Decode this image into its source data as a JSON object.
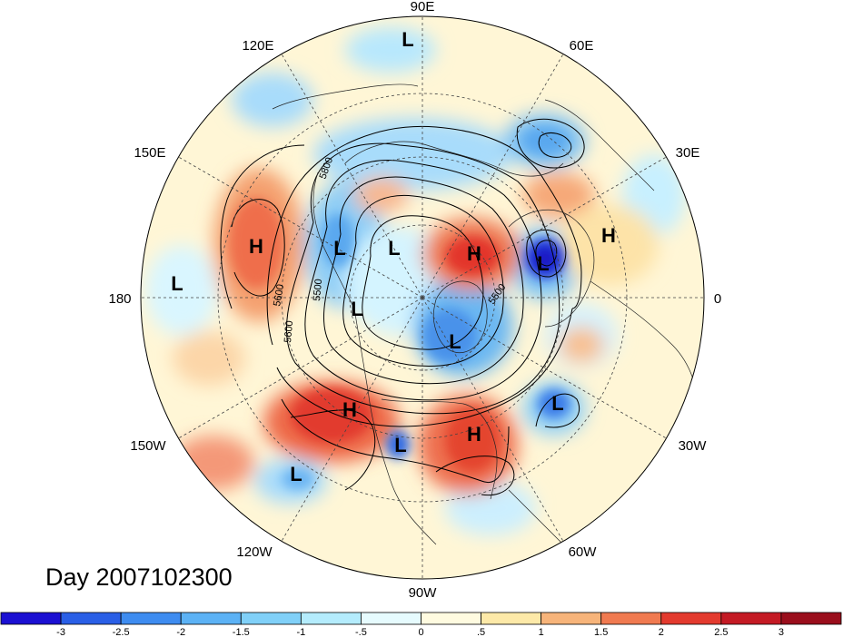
{
  "map": {
    "projection": "north-polar-stereographic",
    "longitude_labels": [
      {
        "text": "90E",
        "lon": 90
      },
      {
        "text": "60E",
        "lon": 60
      },
      {
        "text": "30E",
        "lon": 30
      },
      {
        "text": "0",
        "lon": 0
      },
      {
        "text": "30W",
        "lon": -30
      },
      {
        "text": "60W",
        "lon": -60
      },
      {
        "text": "90W",
        "lon": -90
      },
      {
        "text": "120W",
        "lon": -120
      },
      {
        "text": "150W",
        "lon": -150
      },
      {
        "text": "180",
        "lon": 180
      },
      {
        "text": "150E",
        "lon": 150
      },
      {
        "text": "120E",
        "lon": 120
      }
    ],
    "pressure_systems": [
      {
        "type": "L",
        "region": "central-siberia"
      },
      {
        "type": "H",
        "region": "kamchatka-pacific"
      },
      {
        "type": "L",
        "region": "north-pacific-west"
      },
      {
        "type": "L",
        "region": "east-siberia"
      },
      {
        "type": "L",
        "region": "arctic-siberia"
      },
      {
        "type": "H",
        "region": "scandinavia-barents"
      },
      {
        "type": "L",
        "region": "north-sea"
      },
      {
        "type": "H",
        "region": "eastern-europe"
      },
      {
        "type": "L",
        "region": "alaska-arctic"
      },
      {
        "type": "L",
        "region": "baffin-greenland"
      },
      {
        "type": "L",
        "region": "north-atlantic"
      },
      {
        "type": "H",
        "region": "western-north-america"
      },
      {
        "type": "L",
        "region": "central-north-america"
      },
      {
        "type": "H",
        "region": "eastern-north-america"
      },
      {
        "type": "L",
        "region": "east-pacific"
      }
    ],
    "contour_labels": [
      "5800",
      "5500",
      "5600",
      "5500",
      "5600"
    ],
    "colors": {
      "strong_negative": "#1a1ad0",
      "negative": "#4da6f0",
      "weak_negative": "#c8f0ff",
      "neutral": "#ffffff",
      "weak_positive": "#fff2c8",
      "positive": "#f4a070",
      "strong_positive": "#d42020"
    }
  },
  "day_label": "Day 2007102300",
  "colorbar": {
    "ticks": [
      "-3",
      "-2.5",
      "-2",
      "-1.5",
      "-1",
      "-.5",
      "0",
      ".5",
      "1",
      "1.5",
      "2",
      "2.5",
      "3"
    ],
    "colors": [
      "#1b10d2",
      "#2a5fe6",
      "#3e8cf0",
      "#5cb2f5",
      "#80d0f8",
      "#b4ecfd",
      "#e6fbfe",
      "#fffbe0",
      "#fde9a8",
      "#f7b47a",
      "#f07a50",
      "#e33a2e",
      "#c41a24",
      "#9a0e1c"
    ]
  }
}
